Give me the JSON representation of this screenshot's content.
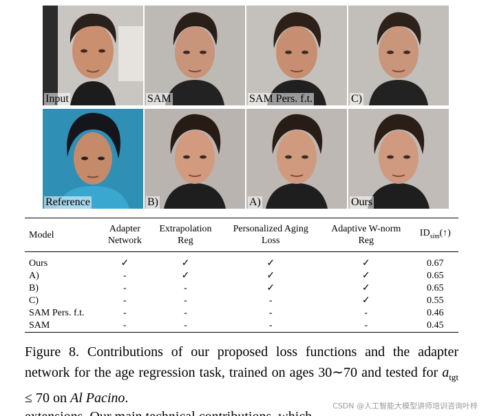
{
  "images": [
    {
      "label": "Input"
    },
    {
      "label": "SAM"
    },
    {
      "label": "SAM Pers. f.t."
    },
    {
      "label": "C)"
    },
    {
      "label": "Reference"
    },
    {
      "label": "B)"
    },
    {
      "label": "A)"
    },
    {
      "label": "Ours"
    }
  ],
  "table": {
    "headers": {
      "model": "Model",
      "adapter": [
        "Adapter",
        "Network"
      ],
      "extrap": [
        "Extrapolation",
        "Reg"
      ],
      "paging": [
        "Personalized Aging",
        "Loss"
      ],
      "wnorm": [
        "Adaptive W-norm",
        "Reg"
      ],
      "idsim": {
        "base": "ID",
        "sub": "sim",
        "suffix": "(↑)"
      }
    },
    "rows": [
      {
        "model": "Ours",
        "adapter": "✓",
        "extrap": "✓",
        "paging": "✓",
        "wnorm": "✓",
        "idsim": "0.67"
      },
      {
        "model": "A)",
        "adapter": "-",
        "extrap": "✓",
        "paging": "✓",
        "wnorm": "✓",
        "idsim": "0.65"
      },
      {
        "model": "B)",
        "adapter": "-",
        "extrap": "-",
        "paging": "✓",
        "wnorm": "✓",
        "idsim": "0.65"
      },
      {
        "model": "C)",
        "adapter": "-",
        "extrap": "-",
        "paging": "-",
        "wnorm": "✓",
        "idsim": "0.55"
      },
      {
        "model": "SAM Pers. f.t.",
        "adapter": "-",
        "extrap": "-",
        "paging": "-",
        "wnorm": "-",
        "idsim": "0.46"
      },
      {
        "model": "SAM",
        "adapter": "-",
        "extrap": "-",
        "paging": "-",
        "wnorm": "-",
        "idsim": "0.45"
      }
    ]
  },
  "caption": {
    "part1": "Figure 8.  Contributions of our proposed loss functions and the adapter network for the age regression task, trained on ages 30∼70 and tested for ",
    "var": "a",
    "var_sub": "tgt",
    "part2": " ≤ 70 on ",
    "name": "Al Pacino",
    "end": "."
  },
  "cutoff_text": "extensions. Our main technical contributions, which",
  "watermark": "CSDN @人工智能大模型讲师培训咨询叶梓"
}
